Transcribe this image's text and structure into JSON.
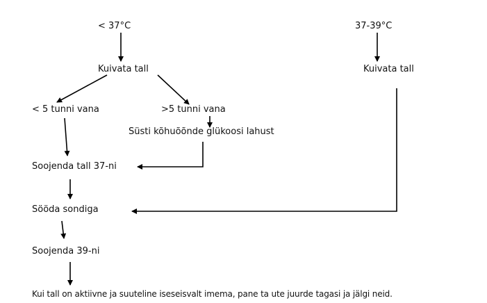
{
  "left_branch": {
    "start": "< 37°C",
    "dry": "Kuivata tall",
    "under5": "< 5 tunni vana",
    "over5": ">5 tunni vana",
    "inject": "Süsti kõhuõõnde glükoosi lahust",
    "warm37": "Soojenda tall 37-ni"
  },
  "right_branch": {
    "start": "37-39°C",
    "dry": "Kuivata tall"
  },
  "common": {
    "feed": "Sööda sondiga",
    "warm39": "Soojenda 39-ni",
    "final": "Kui tall on aktiivne ja suuteline iseseisvalt imema, pane ta ute juurde tagasi ja jälgi neid."
  },
  "colors": {
    "line": "#000000",
    "text": "#111111",
    "background": "#ffffff"
  }
}
